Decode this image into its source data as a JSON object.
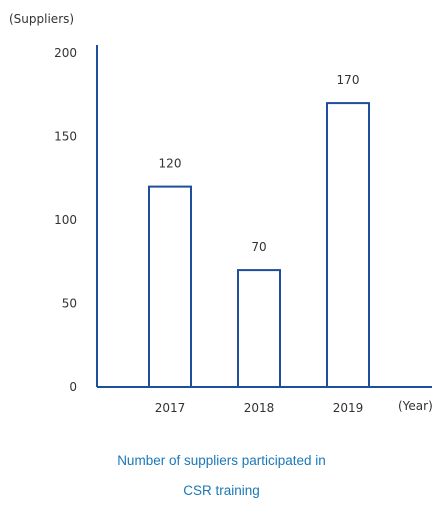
{
  "chart_data": {
    "type": "bar",
    "ylabel": "(Suppliers)",
    "xlabel": "(Year)",
    "categories": [
      "2017",
      "2018",
      "2019"
    ],
    "values": [
      120,
      70,
      170
    ],
    "ylim": [
      0,
      200
    ],
    "yticks": [
      "0",
      "50",
      "100",
      "150",
      "200"
    ],
    "ytick_values": [
      0,
      50,
      100,
      150,
      200
    ],
    "data_labels": [
      "120",
      "70",
      "170"
    ],
    "grid": false,
    "legend": "none",
    "bar_fill": "#ffffff",
    "bar_stroke": "#1f4e9c",
    "axis_color": "#1f4e9c"
  },
  "caption": {
    "line1": "Number of suppliers participated in",
    "line2": "CSR training"
  }
}
